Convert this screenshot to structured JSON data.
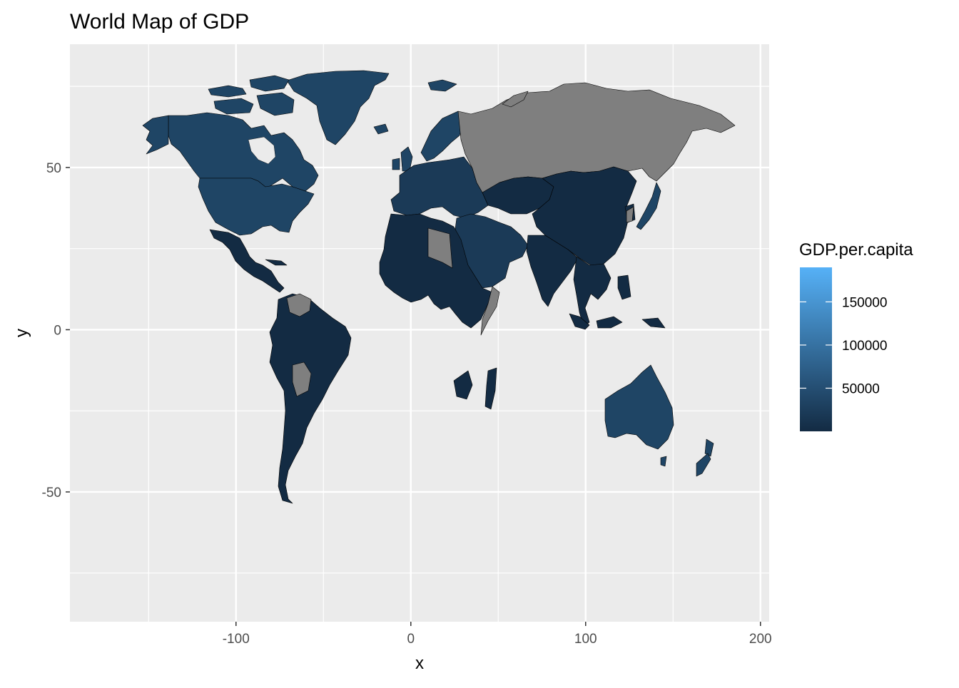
{
  "title": "World Map of GDP",
  "chart_data": {
    "type": "choropleth-map",
    "title": "World Map of GDP",
    "xlabel": "x",
    "ylabel": "y",
    "xlim": [
      -195,
      205
    ],
    "ylim": [
      -90,
      88
    ],
    "x_ticks": [
      -100,
      0,
      100,
      200
    ],
    "y_ticks": [
      -50,
      0,
      50
    ],
    "x_tick_labels": [
      "-100",
      "0",
      "100",
      "200"
    ],
    "y_tick_labels": [
      "-50",
      "0",
      "50"
    ],
    "grid": true,
    "panel_background": "#ebebeb",
    "na_color": "#7f7f7f",
    "legend": {
      "title": "GDP.per.capita",
      "placement": "right",
      "min": 0,
      "max": 190000,
      "breaks": [
        50000,
        100000,
        150000
      ],
      "break_labels": [
        "50000",
        "100000",
        "150000"
      ],
      "color_low": "#132b43",
      "color_high": "#56b1f7"
    }
  },
  "colors": {
    "low": "#132b43",
    "mid_dark": "#1b3a57",
    "mid": "#1f4565",
    "na": "#7f7f7f",
    "border": "#000000"
  }
}
